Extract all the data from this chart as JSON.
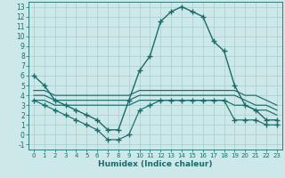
{
  "xlabel": "Humidex (Indice chaleur)",
  "xlim": [
    -0.5,
    23.5
  ],
  "ylim": [
    -1.5,
    13.5
  ],
  "xticks": [
    0,
    1,
    2,
    3,
    4,
    5,
    6,
    7,
    8,
    9,
    10,
    11,
    12,
    13,
    14,
    15,
    16,
    17,
    18,
    19,
    20,
    21,
    22,
    23
  ],
  "yticks": [
    -1,
    0,
    1,
    2,
    3,
    4,
    5,
    6,
    7,
    8,
    9,
    10,
    11,
    12,
    13
  ],
  "bg_color": "#cde8e8",
  "grid_color": "#a8cccc",
  "line_color": "#1a6b6b",
  "line_width": 1.0,
  "marker": "+",
  "marker_size": 4.0,
  "series": {
    "main_line": [
      6,
      5,
      3.5,
      3,
      2.5,
      2,
      1.5,
      0.5,
      0.5,
      3.5,
      6.5,
      8,
      11.5,
      12.5,
      13,
      12.5,
      12,
      9.5,
      8.5,
      5,
      3,
      2.5,
      1.5,
      1.5
    ],
    "upper_line": [
      4.5,
      4.5,
      4,
      4,
      4,
      4,
      4,
      4,
      4,
      4,
      4.5,
      4.5,
      4.5,
      4.5,
      4.5,
      4.5,
      4.5,
      4.5,
      4.5,
      4.5,
      4,
      4,
      3.5,
      3
    ],
    "mid_upper": [
      4,
      4,
      3.5,
      3.5,
      3.5,
      3.5,
      3.5,
      3.5,
      3.5,
      3.5,
      4,
      4,
      4,
      4,
      4,
      4,
      4,
      4,
      4,
      4,
      3.5,
      3,
      3,
      2.5
    ],
    "mid_lower": [
      3.5,
      3.5,
      3,
      3,
      3,
      3,
      3,
      3,
      3,
      3,
      3.5,
      3.5,
      3.5,
      3.5,
      3.5,
      3.5,
      3.5,
      3.5,
      3.5,
      3,
      3,
      2.5,
      2.5,
      2
    ],
    "min_line": [
      3.5,
      3,
      2.5,
      2,
      1.5,
      1,
      0.5,
      -0.5,
      -0.5,
      0,
      2.5,
      3,
      3.5,
      3.5,
      3.5,
      3.5,
      3.5,
      3.5,
      3.5,
      1.5,
      1.5,
      1.5,
      1,
      1
    ]
  }
}
